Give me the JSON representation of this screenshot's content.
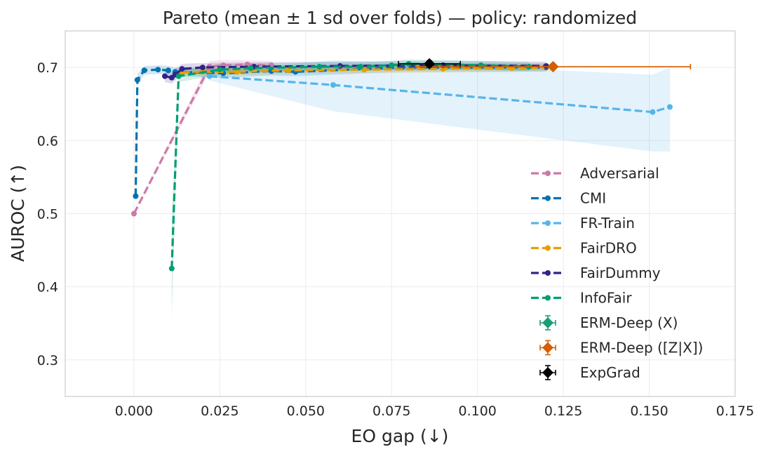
{
  "chart_data": {
    "type": "line",
    "title": "Pareto (mean ± 1 sd over folds) — policy: randomized",
    "xlabel": "EO gap (↓)",
    "ylabel": "AUROC (↑)",
    "xlim": [
      -0.02,
      0.175
    ],
    "ylim": [
      0.25,
      0.75
    ],
    "xticks": [
      0.0,
      0.025,
      0.05,
      0.075,
      0.1,
      0.125,
      0.15,
      0.175
    ],
    "xtick_labels": [
      "0.000",
      "0.025",
      "0.050",
      "0.075",
      "0.100",
      "0.125",
      "0.150",
      "0.175"
    ],
    "yticks": [
      0.3,
      0.4,
      0.5,
      0.6,
      0.7
    ],
    "ytick_labels": [
      "0.3",
      "0.4",
      "0.5",
      "0.6",
      "0.7"
    ],
    "grid": true,
    "legend_position": "center-right",
    "series": [
      {
        "name": "Adversarial",
        "color": "#CC79A7",
        "points": [
          [
            0.0,
            0.5
          ],
          [
            0.022,
            0.701
          ],
          [
            0.026,
            0.703
          ],
          [
            0.033,
            0.704
          ],
          [
            0.04,
            0.703
          ]
        ],
        "band_lo": [
          0.5,
          0.693,
          0.696,
          0.698,
          0.697
        ],
        "band_hi": [
          0.5,
          0.709,
          0.71,
          0.71,
          0.709
        ]
      },
      {
        "name": "CMI",
        "color": "#0072B2",
        "points": [
          [
            0.0005,
            0.524
          ],
          [
            0.001,
            0.683
          ],
          [
            0.003,
            0.696
          ],
          [
            0.007,
            0.697
          ],
          [
            0.01,
            0.696
          ],
          [
            0.012,
            0.694
          ],
          [
            0.026,
            0.692
          ],
          [
            0.04,
            0.695
          ],
          [
            0.047,
            0.694
          ],
          [
            0.078,
            0.7
          ],
          [
            0.12,
            0.7
          ]
        ],
        "band_lo": [
          0.524,
          0.675,
          0.69,
          0.691,
          0.69,
          0.688,
          0.686,
          0.689,
          0.688,
          0.694,
          0.694
        ],
        "band_hi": [
          0.524,
          0.691,
          0.702,
          0.703,
          0.702,
          0.7,
          0.698,
          0.701,
          0.7,
          0.706,
          0.706
        ]
      },
      {
        "name": "FR-Train",
        "color": "#56B4E9",
        "points": [
          [
            0.022,
            0.688
          ],
          [
            0.058,
            0.676
          ],
          [
            0.151,
            0.639
          ],
          [
            0.156,
            0.646
          ]
        ],
        "band_lo": [
          0.682,
          0.64,
          0.585,
          0.585
        ],
        "band_hi": [
          0.694,
          0.71,
          0.69,
          0.7
        ]
      },
      {
        "name": "FairDRO",
        "color": "#E69F00",
        "points": [
          [
            0.014,
            0.693
          ],
          [
            0.02,
            0.694
          ],
          [
            0.03,
            0.694
          ],
          [
            0.045,
            0.696
          ],
          [
            0.067,
            0.697
          ],
          [
            0.09,
            0.698
          ],
          [
            0.11,
            0.699
          ],
          [
            0.122,
            0.7
          ]
        ],
        "band_lo": [
          0.688,
          0.689,
          0.689,
          0.691,
          0.692,
          0.693,
          0.694,
          0.695
        ],
        "band_hi": [
          0.698,
          0.699,
          0.699,
          0.701,
          0.702,
          0.703,
          0.704,
          0.705
        ]
      },
      {
        "name": "FairDummy",
        "color": "#332288",
        "points": [
          [
            0.009,
            0.688
          ],
          [
            0.011,
            0.686
          ],
          [
            0.012,
            0.69
          ],
          [
            0.014,
            0.698
          ],
          [
            0.02,
            0.7
          ],
          [
            0.035,
            0.701
          ],
          [
            0.06,
            0.702
          ],
          [
            0.09,
            0.703
          ],
          [
            0.12,
            0.702
          ]
        ],
        "band_lo": [
          0.68,
          0.678,
          0.682,
          0.691,
          0.694,
          0.695,
          0.696,
          0.697,
          0.696
        ],
        "band_hi": [
          0.696,
          0.694,
          0.698,
          0.705,
          0.706,
          0.707,
          0.708,
          0.709,
          0.708
        ]
      },
      {
        "name": "InfoFair",
        "color": "#009E73",
        "points": [
          [
            0.011,
            0.425
          ],
          [
            0.013,
            0.688
          ],
          [
            0.025,
            0.697
          ],
          [
            0.034,
            0.699
          ],
          [
            0.054,
            0.701
          ],
          [
            0.066,
            0.701
          ],
          [
            0.075,
            0.703
          ],
          [
            0.08,
            0.705
          ],
          [
            0.101,
            0.703
          ],
          [
            0.115,
            0.701
          ]
        ],
        "band_lo": [
          0.355,
          0.68,
          0.69,
          0.693,
          0.695,
          0.695,
          0.697,
          0.699,
          0.697,
          0.695
        ],
        "band_hi": [
          0.495,
          0.696,
          0.704,
          0.705,
          0.707,
          0.707,
          0.709,
          0.711,
          0.709,
          0.707
        ]
      }
    ],
    "reference_points": [
      {
        "name": "ERM-Deep (X)",
        "color": "#1a9e77",
        "x": 0.122,
        "y": 0.701,
        "xerr": 0.0005,
        "yerr": 0.002
      },
      {
        "name": "ERM-Deep ([Z|X])",
        "color": "#D55E00",
        "x": 0.122,
        "y": 0.701,
        "xerr": 0.04,
        "yerr": 0.002
      },
      {
        "name": "ExpGrad",
        "color": "#000000",
        "x": 0.086,
        "y": 0.705,
        "xerr": 0.009,
        "yerr": 0.004
      }
    ]
  }
}
